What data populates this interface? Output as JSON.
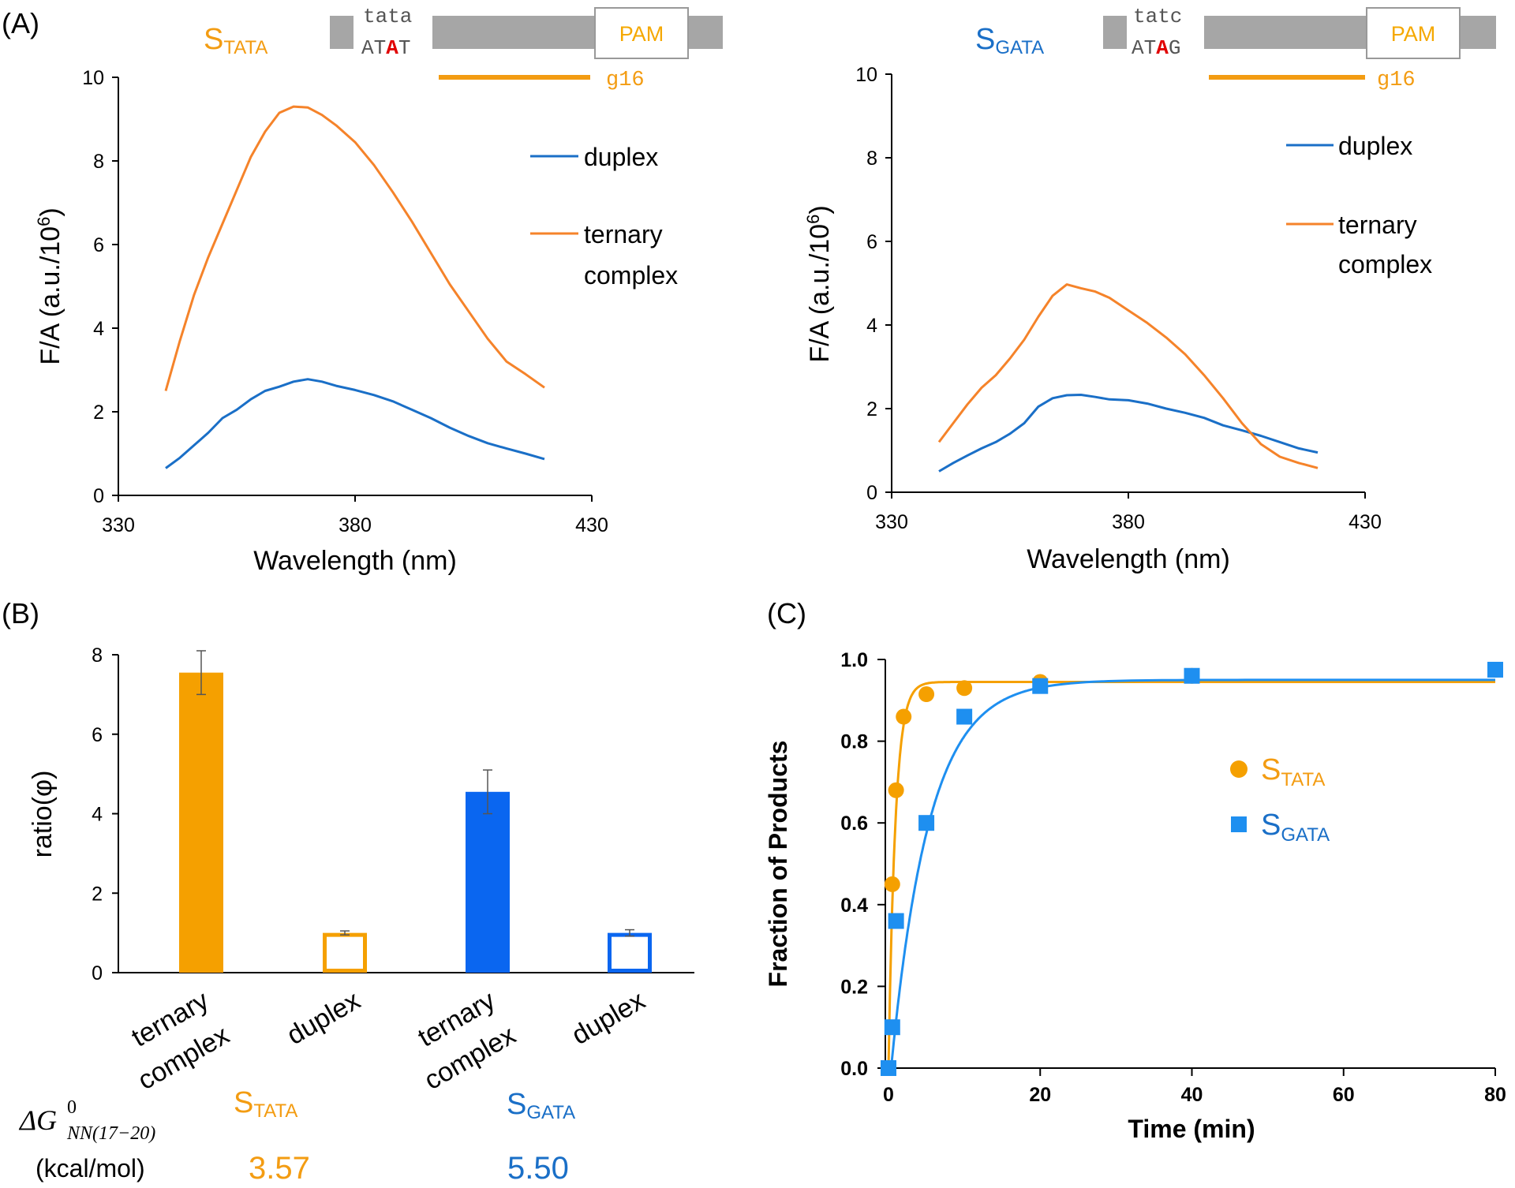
{
  "colors": {
    "orange": "#f39c12",
    "orange_line": "#f5832a",
    "blue": "#1a6fc7",
    "blue_bar": "#0a66f0",
    "blue_fit": "#1e90ea",
    "gray_box": "#a6a6a6"
  },
  "panel_labels": {
    "a": "(A)",
    "b": "(B)",
    "c": "(C)"
  },
  "schematics": [
    {
      "substrate_main": "S",
      "substrate_sub": "TATA",
      "top_seq": "tata",
      "bottom_pre": "AT",
      "bottom_mut": "A",
      "bottom_post": "T",
      "pam": "PAM",
      "guide": "g16"
    },
    {
      "substrate_main": "S",
      "substrate_sub": "GATA",
      "top_seq": "tatc",
      "bottom_pre": "AT",
      "bottom_mut": "A",
      "bottom_post": "G",
      "pam": "PAM",
      "guide": "g16"
    }
  ],
  "chart_data": [
    {
      "id": "A-left",
      "type": "line",
      "xlabel": "Wavelength (nm)",
      "ylabel_main": "F/A (a.u./10",
      "ylabel_sup": "6",
      "ylabel_end": ")",
      "xlim": [
        330,
        430
      ],
      "ylim": [
        0,
        10
      ],
      "xticks": [
        330,
        380,
        430
      ],
      "yticks": [
        0,
        2,
        4,
        6,
        8,
        10
      ],
      "legend_placement": "right",
      "series": [
        {
          "name": "duplex",
          "legend_lines": [
            "duplex"
          ],
          "color": "#1a6fc7",
          "x": [
            340,
            343,
            346,
            349,
            352,
            355,
            358,
            361,
            364,
            367,
            370,
            373,
            376,
            380,
            384,
            388,
            392,
            396,
            400,
            404,
            408,
            412,
            416,
            420
          ],
          "y": [
            0.65,
            0.9,
            1.2,
            1.5,
            1.85,
            2.05,
            2.3,
            2.5,
            2.6,
            2.72,
            2.78,
            2.72,
            2.62,
            2.52,
            2.4,
            2.25,
            2.05,
            1.85,
            1.62,
            1.42,
            1.25,
            1.12,
            1.0,
            0.87
          ]
        },
        {
          "name": "ternary complex",
          "legend_lines": [
            "ternary",
            "complex"
          ],
          "color": "#f5832a",
          "x": [
            340,
            343,
            346,
            349,
            352,
            355,
            358,
            361,
            364,
            367,
            370,
            373,
            376,
            380,
            384,
            388,
            392,
            396,
            400,
            404,
            408,
            412,
            416,
            420
          ],
          "y": [
            2.5,
            3.7,
            4.8,
            5.7,
            6.5,
            7.3,
            8.1,
            8.7,
            9.15,
            9.3,
            9.28,
            9.1,
            8.85,
            8.45,
            7.9,
            7.25,
            6.55,
            5.8,
            5.05,
            4.4,
            3.75,
            3.2,
            2.9,
            2.58
          ]
        }
      ]
    },
    {
      "id": "A-right",
      "type": "line",
      "xlabel": "Wavelength (nm)",
      "ylabel_main": "F/A (a.u./10",
      "ylabel_sup": "6",
      "ylabel_end": ")",
      "xlim": [
        330,
        430
      ],
      "ylim": [
        0,
        10
      ],
      "xticks": [
        330,
        380,
        430
      ],
      "yticks": [
        0,
        2,
        4,
        6,
        8,
        10
      ],
      "legend_placement": "right",
      "series": [
        {
          "name": "duplex",
          "legend_lines": [
            "duplex"
          ],
          "color": "#1a6fc7",
          "x": [
            340,
            343,
            346,
            349,
            352,
            355,
            358,
            361,
            364,
            367,
            370,
            373,
            376,
            380,
            384,
            388,
            392,
            396,
            400,
            404,
            408,
            412,
            416,
            420
          ],
          "y": [
            0.5,
            0.7,
            0.88,
            1.05,
            1.2,
            1.4,
            1.65,
            2.05,
            2.25,
            2.32,
            2.33,
            2.28,
            2.22,
            2.2,
            2.12,
            2.0,
            1.9,
            1.78,
            1.6,
            1.48,
            1.35,
            1.2,
            1.05,
            0.95
          ]
        },
        {
          "name": "ternary complex",
          "legend_lines": [
            "ternary",
            "complex"
          ],
          "color": "#f5832a",
          "x": [
            340,
            343,
            346,
            349,
            352,
            355,
            358,
            361,
            364,
            367,
            370,
            373,
            376,
            380,
            384,
            388,
            392,
            396,
            400,
            404,
            408,
            412,
            416,
            420
          ],
          "y": [
            1.2,
            1.65,
            2.1,
            2.5,
            2.8,
            3.2,
            3.65,
            4.2,
            4.7,
            4.97,
            4.88,
            4.8,
            4.65,
            4.35,
            4.05,
            3.7,
            3.3,
            2.8,
            2.25,
            1.65,
            1.15,
            0.85,
            0.7,
            0.58
          ]
        }
      ]
    },
    {
      "id": "B",
      "type": "bar",
      "ylabel": "ratio(φ)",
      "ylim": [
        0,
        8
      ],
      "yticks": [
        0,
        2,
        4,
        6,
        8
      ],
      "categories": [
        [
          "ternary",
          "complex"
        ],
        [
          "duplex"
        ],
        [
          "ternary",
          "complex"
        ],
        [
          "duplex"
        ]
      ],
      "values": [
        7.55,
        1.0,
        4.55,
        1.0
      ],
      "errors": [
        0.55,
        0.05,
        0.55,
        0.08
      ],
      "colors": [
        "#f5a000",
        "#f5a000",
        "#0a66f0",
        "#0a66f0"
      ],
      "filled": [
        true,
        false,
        true,
        false
      ],
      "annotation": {
        "dg_symbol": "ΔG",
        "dg_sup": "0",
        "dg_sub": "NN(17−20)",
        "unit": "(kcal/mol)",
        "groups": [
          {
            "main": "S",
            "sub": "TATA",
            "value": "3.57",
            "color": "#f39c12"
          },
          {
            "main": "S",
            "sub": "GATA",
            "value": "5.50",
            "color": "#1a6fc7"
          }
        ]
      }
    },
    {
      "id": "C",
      "type": "scatter",
      "xlabel": "Time (min)",
      "ylabel": "Fraction of Products",
      "xlim": [
        0,
        80
      ],
      "ylim": [
        0,
        1.0
      ],
      "xticks": [
        0,
        20,
        40,
        60,
        80
      ],
      "yticks": [
        "0.0",
        "0.2",
        "0.4",
        "0.6",
        "0.8",
        "1.0"
      ],
      "legend_placement": "center-right",
      "series": [
        {
          "name": "S_TATA",
          "label_main": "S",
          "label_sub": "TATA",
          "marker": "circle",
          "color": "#f5a000",
          "x": [
            0,
            0.5,
            1,
            2,
            5,
            10,
            20,
            40,
            80
          ],
          "y": [
            0.0,
            0.45,
            0.68,
            0.86,
            0.915,
            0.93,
            0.945,
            0.96,
            0.975
          ],
          "fit": {
            "amplitude": 0.945,
            "rate": 1.1
          }
        },
        {
          "name": "S_GATA",
          "label_main": "S",
          "label_sub": "GATA",
          "marker": "square",
          "color": "#1e8ff0",
          "x": [
            0,
            0.5,
            1,
            5,
            10,
            20,
            40,
            80
          ],
          "y": [
            0.0,
            0.1,
            0.36,
            0.6,
            0.86,
            0.935,
            0.96,
            0.975
          ],
          "fit": {
            "amplitude": 0.95,
            "rate": 0.2,
            "lag": 0.35
          }
        }
      ]
    }
  ]
}
